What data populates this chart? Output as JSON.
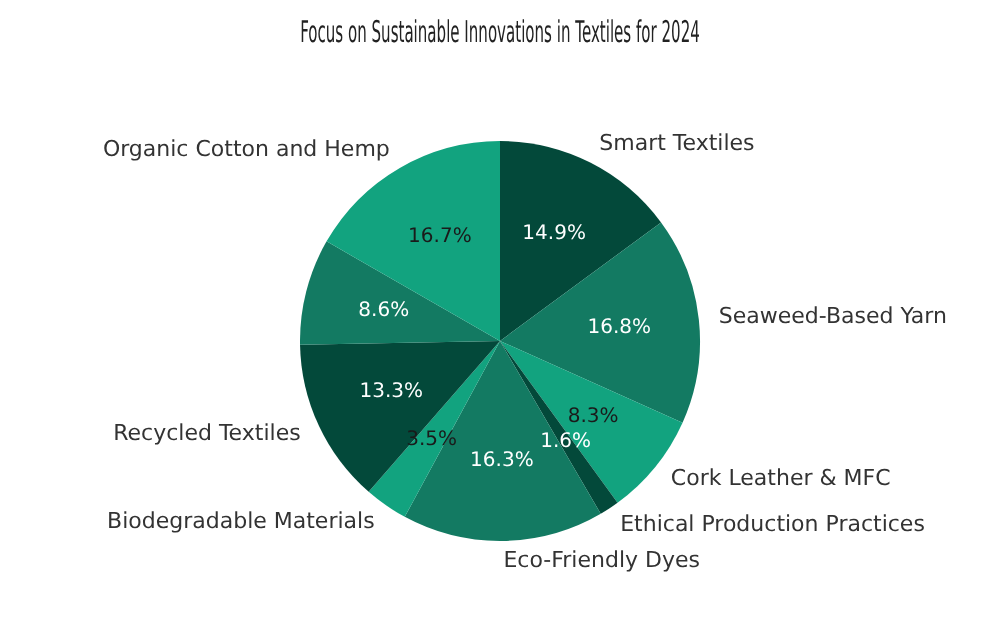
{
  "chart_data": {
    "type": "pie",
    "title": "Focus on Sustainable Innovations in Textiles for 2024",
    "categories": [
      "Smart Textiles",
      "Seaweed-Based Yarn",
      "Cork Leather & MFC",
      "Ethical Production Practices",
      "Eco-Friendly Dyes",
      "Biodegradable Materials",
      "Recycled Textiles",
      null,
      "Organic Cotton and Hemp"
    ],
    "values": [
      14.9,
      16.8,
      8.3,
      1.6,
      16.3,
      3.5,
      13.3,
      8.6,
      16.7
    ],
    "value_labels": [
      "14.9%",
      "16.8%",
      "8.3%",
      "1.6%",
      "16.3%",
      "3.5%",
      "13.3%",
      "8.6%",
      "16.7%"
    ],
    "colors": [
      "#03493a",
      "#137a62",
      "#12a37f",
      "#03493a",
      "#137a62",
      "#12a37f",
      "#03493a",
      "#137a62",
      "#12a37f"
    ]
  }
}
